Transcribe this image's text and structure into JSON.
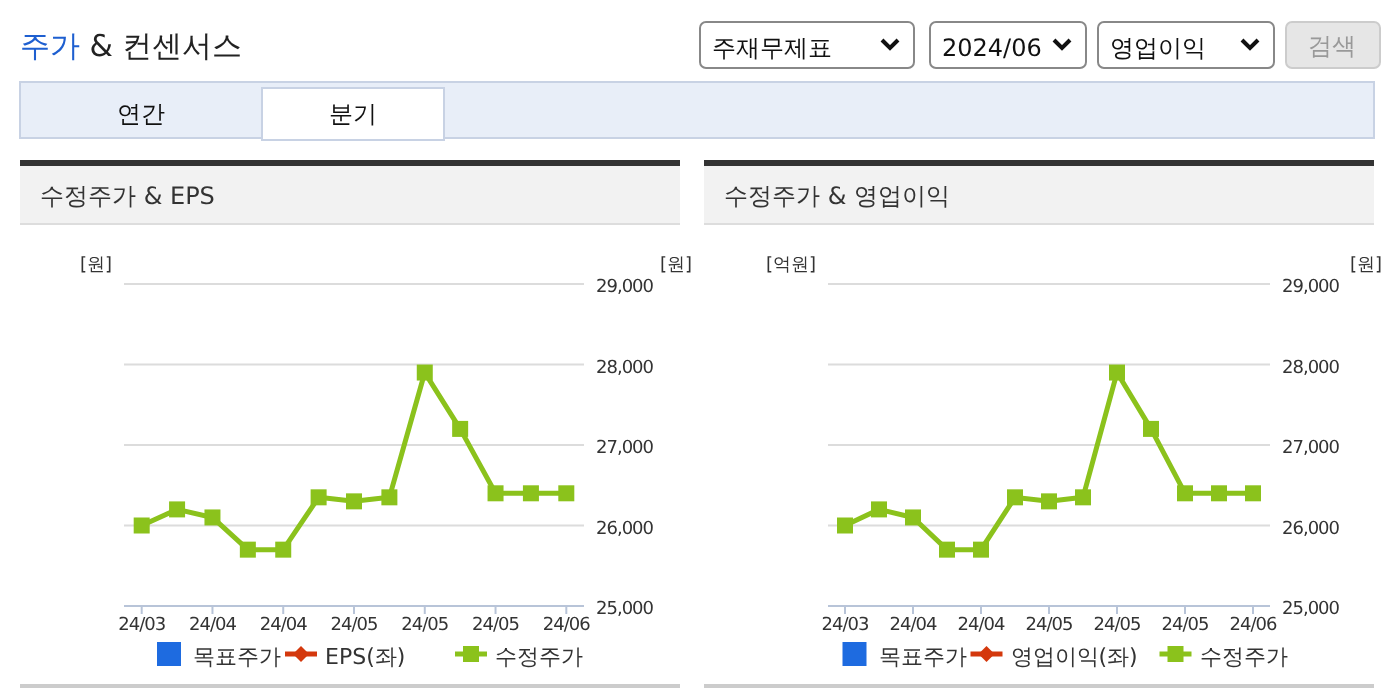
{
  "chart_data": [
    {
      "type": "other",
      "title": "주가 & 컨센서스",
      "annotations": [
        "주재무제표",
        "2024/06",
        "영업이익",
        "검색",
        "연간",
        "분기"
      ]
    },
    {
      "type": "line",
      "title": "수정주가 & EPS",
      "ylabel": "[원]",
      "y2label": "[원]",
      "categories": [
        "24/03",
        null,
        "24/04",
        null,
        "24/04",
        null,
        "24/05",
        null,
        "24/05",
        null,
        "24/05",
        null,
        "24/06"
      ],
      "y2lim": [
        25000,
        29000
      ],
      "y2ticks": [
        {
          "value": 25000,
          "label": "25,000"
        },
        {
          "value": 26000,
          "label": "26,000"
        },
        {
          "value": 27000,
          "label": "27,000"
        },
        {
          "value": 28000,
          "label": "28,000"
        },
        {
          "value": 29000,
          "label": "29,000"
        }
      ],
      "grid": "y",
      "legend": "bottom",
      "series": [
        {
          "name": "목표주가",
          "type": "bar",
          "color": "#1e6be0",
          "values": [
            null,
            null,
            null,
            null,
            null,
            null,
            null,
            null,
            null,
            null,
            null,
            null,
            null
          ]
        },
        {
          "name": "EPS(좌)",
          "color": "#d4380d",
          "marker": "diamond",
          "values": [
            null,
            null,
            null,
            null,
            null,
            null,
            null,
            null,
            null,
            null,
            null,
            null,
            null
          ]
        },
        {
          "name": "수정주가",
          "color": "#8bc21c",
          "marker": "square",
          "axis": "y2",
          "values": [
            26000,
            26200,
            26100,
            25700,
            25700,
            26350,
            26300,
            26350,
            27900,
            27200,
            26400,
            26400,
            26400
          ]
        }
      ]
    },
    {
      "type": "line",
      "title": "수정주가 & 영업이익",
      "ylabel": "[억원]",
      "y2label": "[원]",
      "categories": [
        "24/03",
        null,
        "24/04",
        null,
        "24/04",
        null,
        "24/05",
        null,
        "24/05",
        null,
        "24/05",
        null,
        "24/06"
      ],
      "y2lim": [
        25000,
        29000
      ],
      "y2ticks": [
        {
          "value": 25000,
          "label": "25,000"
        },
        {
          "value": 26000,
          "label": "26,000"
        },
        {
          "value": 27000,
          "label": "27,000"
        },
        {
          "value": 28000,
          "label": "28,000"
        },
        {
          "value": 29000,
          "label": "29,000"
        }
      ],
      "grid": "y",
      "legend": "bottom",
      "series": [
        {
          "name": "목표주가",
          "type": "bar",
          "color": "#1e6be0",
          "values": [
            null,
            null,
            null,
            null,
            null,
            null,
            null,
            null,
            null,
            null,
            null,
            null,
            null
          ]
        },
        {
          "name": "영업이익(좌)",
          "color": "#d4380d",
          "marker": "diamond",
          "values": [
            null,
            null,
            null,
            null,
            null,
            null,
            null,
            null,
            null,
            null,
            null,
            null,
            null
          ]
        },
        {
          "name": "수정주가",
          "color": "#8bc21c",
          "marker": "square",
          "axis": "y2",
          "values": [
            26000,
            26200,
            26100,
            25700,
            25700,
            26350,
            26300,
            26350,
            27900,
            27200,
            26400,
            26400,
            26400
          ]
        }
      ]
    }
  ]
}
